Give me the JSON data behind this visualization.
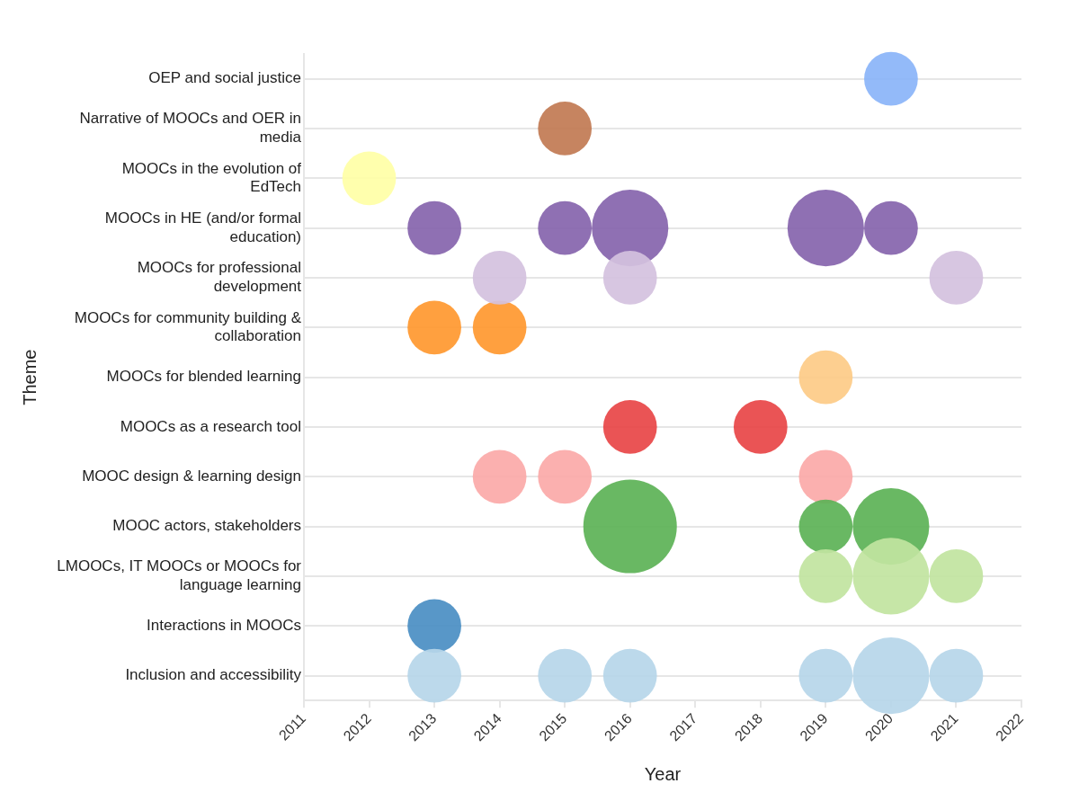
{
  "chart_data": {
    "type": "bubble",
    "orientation": "horizontal",
    "xlabel": "Year",
    "ylabel": "Theme",
    "xlim": [
      2011,
      2022
    ],
    "xticks": [
      2011,
      2012,
      2013,
      2014,
      2015,
      2016,
      2017,
      2018,
      2019,
      2020,
      2021,
      2022
    ],
    "categories": [
      "OEP and social justice",
      "Narrative of MOOCs and OER in media",
      "MOOCs in the evolution of EdTech",
      "MOOCs in HE (and/or formal education)",
      "MOOCs for professional development",
      "MOOCs for community building & collaboration",
      "MOOCs for blended learning",
      "MOOCs as a research tool",
      "MOOC design & learning design",
      "MOOC actors, stakeholders",
      "LMOOCs, IT MOOCs or MOOCs for language learning",
      "Interactions in MOOCs",
      "Inclusion and accessibility"
    ],
    "grid": "y",
    "legend": false,
    "series": [
      {
        "colors": [
          "#8ab4f8",
          "#c17a52",
          "#ffffa6",
          "#8664ac",
          "#d4c1de",
          "#ff982f",
          "#fdcb87",
          "#e84546",
          "#fba9a8",
          "#5cb256",
          "#c1e49f",
          "#4a8ec3",
          "#b6d6e9"
        ],
        "values": [
          2020,
          2015,
          2012,
          2013,
          2014,
          2013,
          2019,
          2016,
          2014,
          2016,
          2019,
          2013,
          2013
        ],
        "sizes": [
          0.33,
          0.33,
          0.33,
          0.33,
          0.33,
          0.33,
          0.33,
          0.33,
          0.33,
          1,
          0.33,
          0.33,
          0.33
        ]
      },
      {
        "colors": [
          "#8ab4f8",
          "#c17a52",
          "#ffffa6",
          "#8664ac",
          "#d4c1de",
          "#ff982f",
          "#fdcb87",
          "#e84546",
          "#fba9a8",
          "#5cb256",
          "#c1e49f",
          "#4a8ec3",
          "#b6d6e9"
        ],
        "values": [
          null,
          null,
          null,
          2015,
          2016,
          2014,
          null,
          2018,
          2015,
          2019,
          2020,
          null,
          2015
        ],
        "sizes": [
          null,
          null,
          null,
          0.33,
          0.33,
          0.33,
          null,
          0.33,
          0.33,
          0.33,
          0.67,
          null,
          0.33
        ]
      },
      {
        "colors": [
          "#8ab4f8",
          "#c17a52",
          "#ffffa6",
          "#8664ac",
          "#d4c1de",
          "#ff982f",
          "#fdcb87",
          "#e84546",
          "#fba9a8",
          "#5cb256",
          "#c1e49f",
          "#4a8ec3",
          "#b6d6e9"
        ],
        "values": [
          null,
          null,
          null,
          2016,
          2021,
          null,
          null,
          null,
          2019,
          2020,
          2021,
          null,
          2016
        ],
        "sizes": [
          null,
          null,
          null,
          0.67,
          0.33,
          null,
          null,
          null,
          0.33,
          0.67,
          0.33,
          null,
          0.33
        ]
      },
      {
        "colors": [
          "#8ab4f8",
          "#c17a52",
          "#ffffa6",
          "#8664ac",
          "#d4c1de",
          "#ff982f",
          "#fdcb87",
          "#e84546",
          "#fba9a8",
          "#5cb256",
          "#c1e49f",
          "#4a8ec3",
          "#b6d6e9"
        ],
        "values": [
          null,
          null,
          null,
          2019,
          null,
          null,
          null,
          null,
          null,
          null,
          null,
          null,
          2019
        ],
        "sizes": [
          null,
          null,
          null,
          0.67,
          null,
          null,
          null,
          null,
          null,
          null,
          null,
          null,
          0.33
        ]
      },
      {
        "colors": [
          "#8ab4f8",
          "#c17a52",
          "#ffffa6",
          "#8664ac",
          "#d4c1de",
          "#ff982f",
          "#fdcb87",
          "#e84546",
          "#fba9a8",
          "#5cb256",
          "#c1e49f",
          "#4a8ec3",
          "#b6d6e9"
        ],
        "values": [
          null,
          null,
          null,
          2020,
          null,
          null,
          null,
          null,
          null,
          null,
          null,
          null,
          2020
        ],
        "sizes": [
          null,
          null,
          null,
          0.33,
          null,
          null,
          null,
          null,
          null,
          null,
          null,
          null,
          0.67
        ]
      },
      {
        "colors": [
          "#8ab4f8",
          "#c17a52",
          "#ffffa6",
          "#8664ac",
          "#d4c1de",
          "#ff982f",
          "#fdcb87",
          "#e84546",
          "#fba9a8",
          "#5cb256",
          "#c1e49f",
          "#4a8ec3",
          "#b6d6e9"
        ],
        "values": [
          null,
          null,
          null,
          null,
          null,
          null,
          null,
          null,
          null,
          null,
          null,
          null,
          2021
        ],
        "sizes": [
          null,
          null,
          null,
          null,
          null,
          null,
          null,
          null,
          null,
          null,
          null,
          null,
          0.33
        ]
      }
    ]
  }
}
